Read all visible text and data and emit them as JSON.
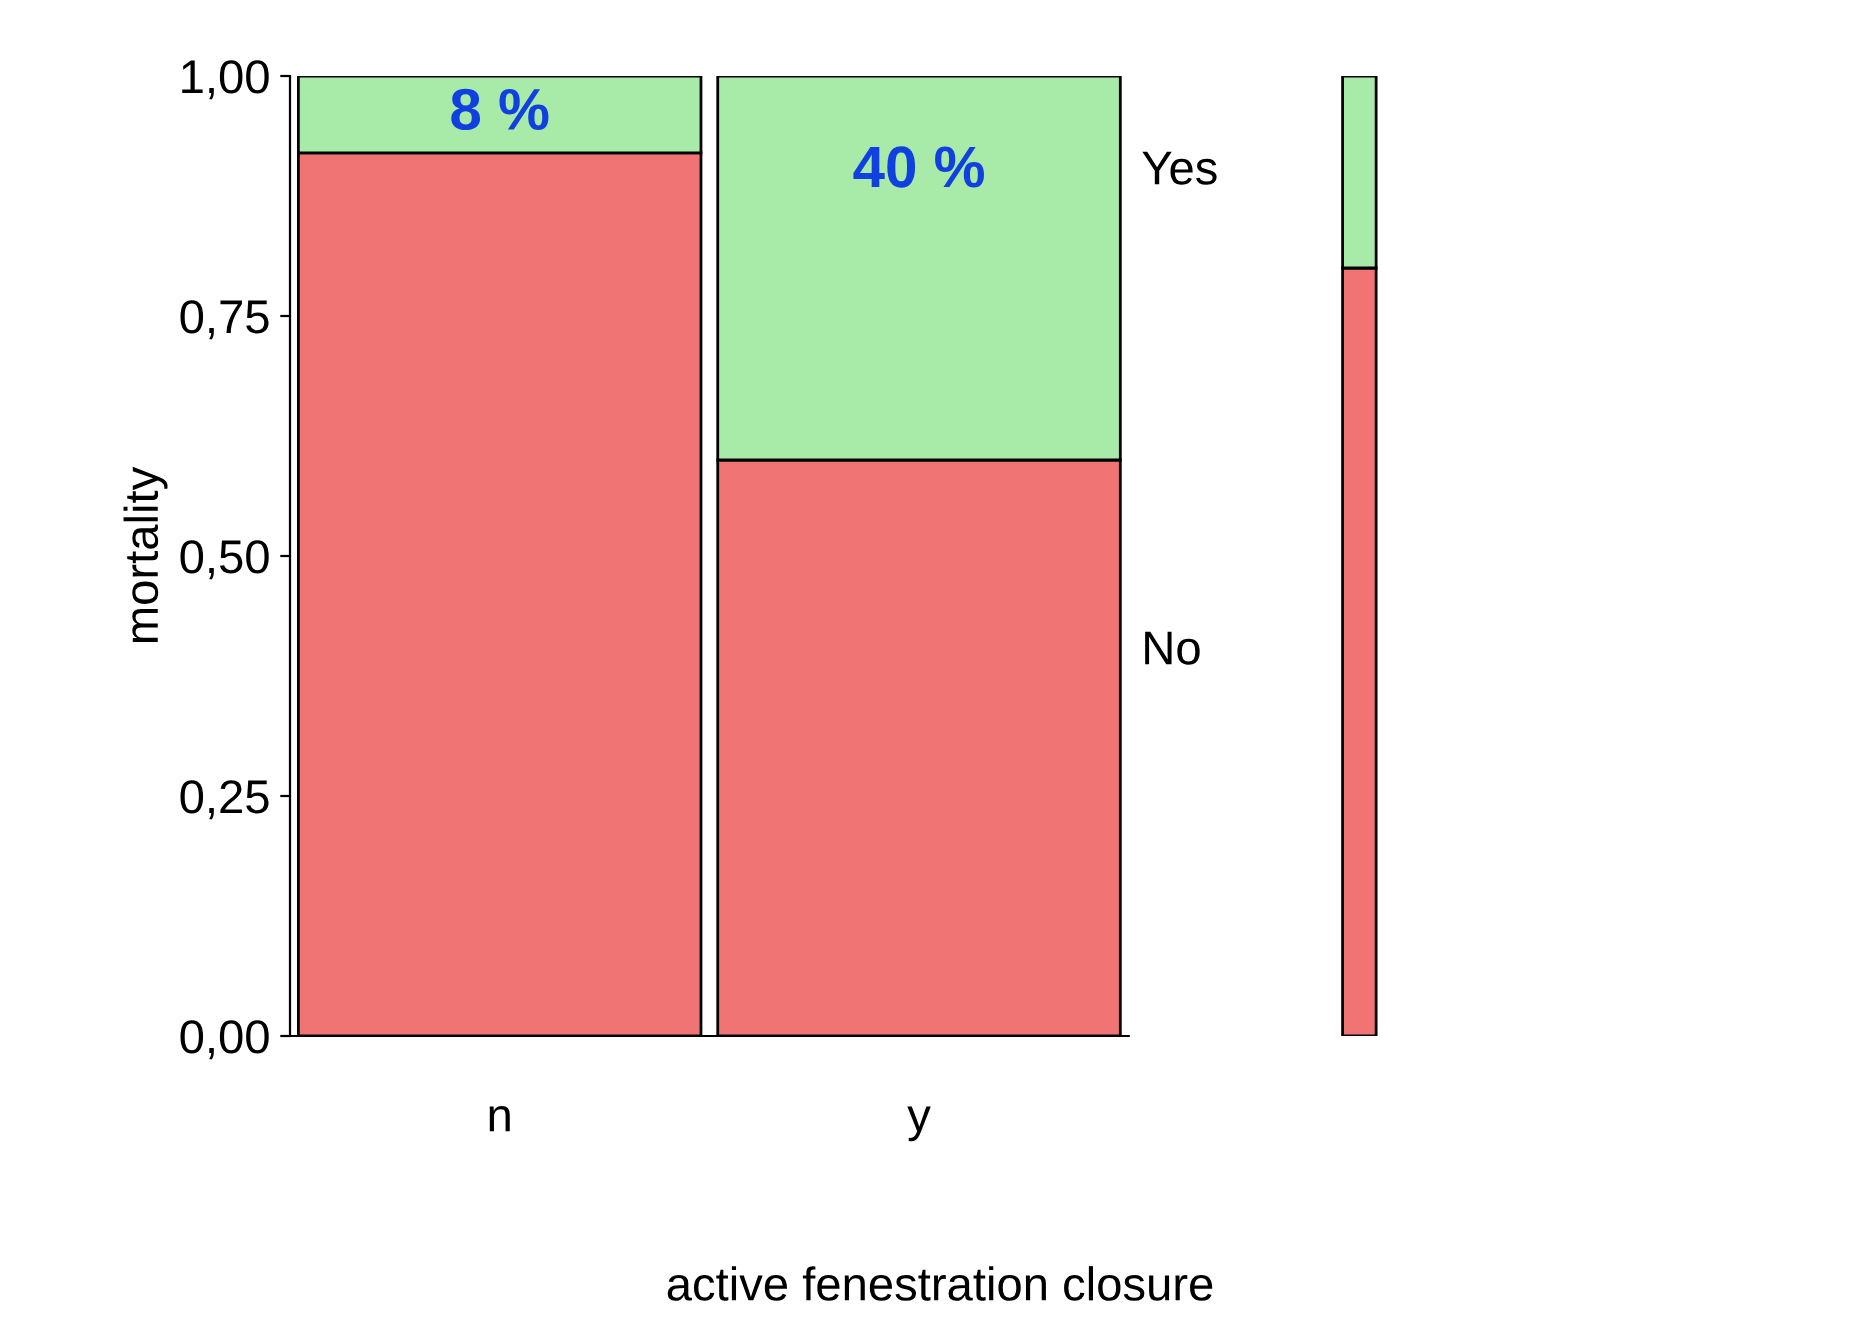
{
  "chart_data": {
    "type": "bar",
    "stacked": true,
    "xlabel": "active fenestration closure",
    "ylabel": "mortality",
    "categories": [
      "n",
      "y",
      null
    ],
    "series": [
      {
        "name": "No",
        "color": "#f07474",
        "values": [
          0.92,
          0.6,
          0.8
        ]
      },
      {
        "name": "Yes",
        "color": "#a8eaa8",
        "values": [
          0.08,
          0.4,
          0.2
        ],
        "value_labels": [
          "8 %",
          "40 %",
          null
        ]
      }
    ],
    "ylim": [
      0,
      1
    ],
    "yticks": [
      {
        "value": 0,
        "label": "0,00"
      },
      {
        "value": 0.25,
        "label": "0,25"
      },
      {
        "value": 0.5,
        "label": "0,50"
      },
      {
        "value": 0.75,
        "label": "0,75"
      },
      {
        "value": 1,
        "label": "1,00"
      }
    ],
    "grid": false,
    "legend": false
  }
}
